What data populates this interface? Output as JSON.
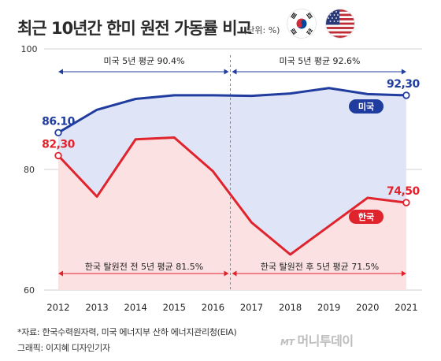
{
  "header": {
    "title": "최근 10년간 한미 원전 가동률 비교",
    "unit": "(단위: %)"
  },
  "flags": {
    "korea": "korea-flag-icon",
    "usa": "usa-flag-icon"
  },
  "colors": {
    "us_line": "#1f3c9e",
    "kr_line": "#e0242e",
    "us_fill": "#dfe5f6",
    "kr_fill": "#fbe1e1"
  },
  "chart_data": {
    "type": "area",
    "x": [
      "2012",
      "2013",
      "2014",
      "2015",
      "2016",
      "2017",
      "2018",
      "2019",
      "2020",
      "2021"
    ],
    "ylim": [
      60,
      100
    ],
    "yticks": [
      "60",
      "80",
      "100"
    ],
    "series": [
      {
        "name": "미국",
        "values": [
          86.1,
          89.9,
          91.7,
          92.3,
          92.3,
          92.2,
          92.6,
          93.5,
          92.5,
          92.3
        ]
      },
      {
        "name": "한국",
        "values": [
          82.3,
          75.5,
          85.0,
          85.3,
          79.7,
          71.2,
          65.9,
          70.6,
          75.3,
          74.5
        ]
      }
    ],
    "labels": {
      "us_start": "86.10",
      "us_end": "92,30",
      "kr_start": "82,30",
      "kr_end": "74,50"
    },
    "annotations": {
      "us_avg_before": "미국 5년 평균 90.4%",
      "us_avg_after": "미국 5년 평균 92.6%",
      "kr_avg_before": "한국 탈원전 전 5년 평균 81.5%",
      "kr_avg_after": "한국 탈원전 후 5년 평균 71.5%"
    }
  },
  "footer": {
    "source": "*자료: 한국수력원자력, 미국 에너지부 산하 에너지관리청(EIA)",
    "credit": "그래픽: 이지혜 디자인기자",
    "watermark_mt": "MT",
    "watermark_name": "머니투데이"
  }
}
